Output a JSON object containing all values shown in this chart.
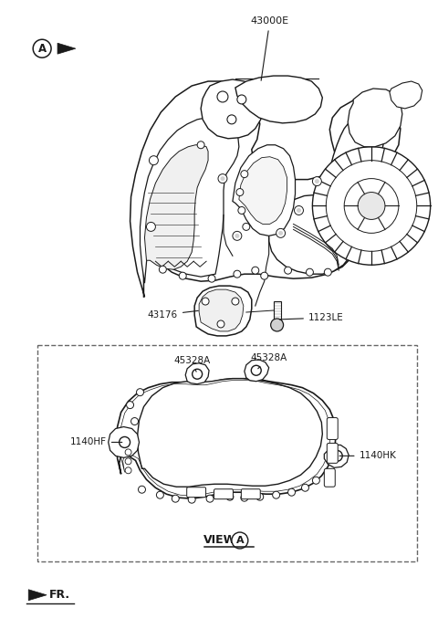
{
  "bg_color": "#ffffff",
  "lc": "#1a1a1a",
  "fig_width": 4.8,
  "fig_height": 6.89,
  "dpi": 100,
  "trans_label": "43000E",
  "bracket_label": "43176",
  "bolt_label": "1123LE",
  "gasket_label_l": "45328A",
  "gasket_label_r": "45328A",
  "bolt_hf_label": "1140HF",
  "bolt_hk_label": "1140HK",
  "view_label": "VIEW",
  "view_a_letter": "A",
  "fr_label": "FR.",
  "circle_a_letter": "A"
}
